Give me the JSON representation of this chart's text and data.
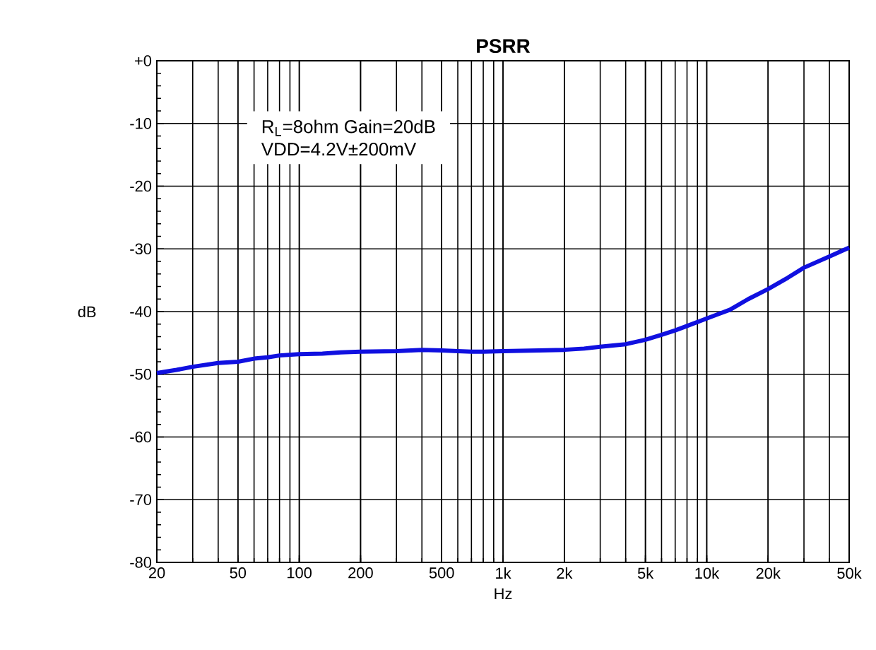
{
  "chart_data": {
    "type": "line",
    "title": "PSRR",
    "xlabel": "Hz",
    "ylabel": "dB",
    "log": "x",
    "grid": true,
    "line_style": "solid",
    "xlim": [
      20,
      50000
    ],
    "ylim": [
      -80,
      0
    ],
    "xticks": [
      20,
      50,
      100,
      200,
      500,
      {
        "value": 1000,
        "label": "1k"
      },
      {
        "value": 2000,
        "label": "2k"
      },
      {
        "value": 5000,
        "label": "5k"
      },
      {
        "value": 10000,
        "label": "10k"
      },
      {
        "value": 20000,
        "label": "20k"
      },
      {
        "value": 50000,
        "label": "50k"
      }
    ],
    "yticks": [
      {
        "value": 0,
        "label": "+0"
      },
      -10,
      -20,
      -30,
      -40,
      -50,
      -60,
      -70,
      -80
    ],
    "annotations": [
      "R$_{L}$=8ohm Gain=20dB",
      "VDD=4.2V±200mV"
    ],
    "series": [
      {
        "color": "#1010e0",
        "x": [
          20,
          25,
          30,
          40,
          50,
          60,
          70,
          80,
          100,
          130,
          160,
          200,
          300,
          400,
          500,
          600,
          700,
          800,
          1000,
          1500,
          2000,
          2500,
          3000,
          4000,
          5000,
          6000,
          7000,
          8000,
          10000,
          13000,
          16000,
          20000,
          25000,
          30000,
          40000,
          50000
        ],
        "values": [
          -49.8,
          -49.3,
          -48.8,
          -48.2,
          -48.0,
          -47.5,
          -47.3,
          -47.0,
          -46.8,
          -46.7,
          -46.5,
          -46.4,
          -46.3,
          -46.1,
          -46.2,
          -46.3,
          -46.4,
          -46.4,
          -46.3,
          -46.2,
          -46.1,
          -45.9,
          -45.6,
          -45.2,
          -44.5,
          -43.7,
          -43.0,
          -42.3,
          -41.1,
          -39.7,
          -38.0,
          -36.4,
          -34.6,
          -33.0,
          -31.2,
          -29.8
        ]
      }
    ]
  }
}
